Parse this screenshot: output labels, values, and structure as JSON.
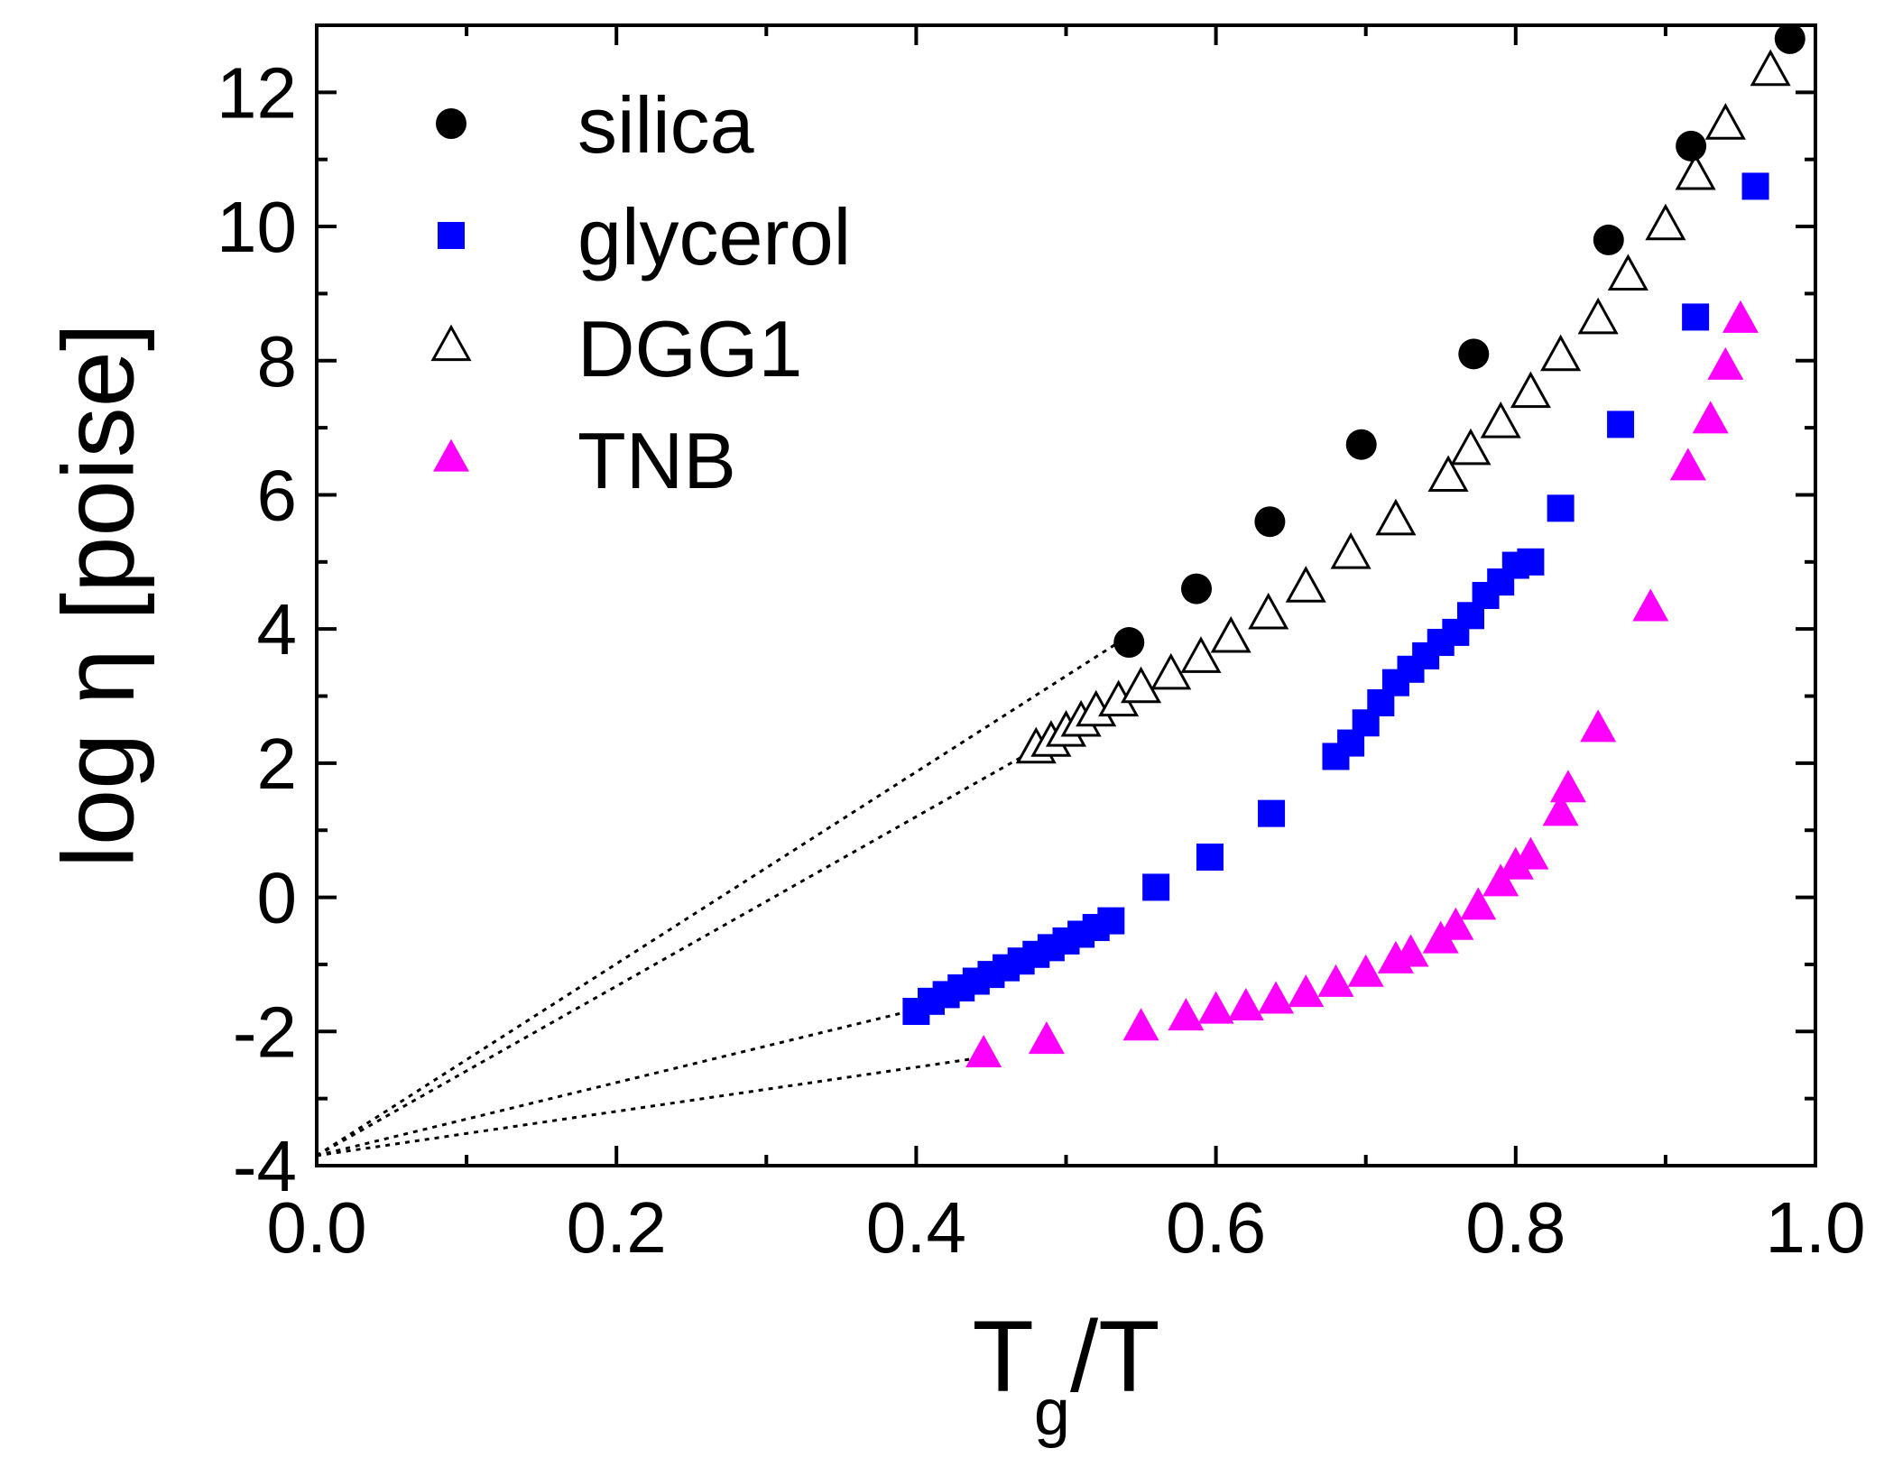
{
  "chart_data": {
    "type": "scatter",
    "title": "",
    "xlabel": {
      "main": "T",
      "subscript": "g",
      "suffix": "/T"
    },
    "ylabel": "log η [poise]",
    "xlim": [
      0.0,
      1.0
    ],
    "ylim": [
      -4,
      13
    ],
    "x_ticks": [
      0.0,
      0.2,
      0.4,
      0.6,
      0.8,
      1.0
    ],
    "x_tick_labels": [
      "0.0",
      "0.2",
      "0.4",
      "0.6",
      "0.8",
      "1.0"
    ],
    "y_ticks": [
      -4,
      -2,
      0,
      2,
      4,
      6,
      8,
      10,
      12
    ],
    "y_tick_labels": [
      "-4",
      "-2",
      "0",
      "2",
      "4",
      "6",
      "8",
      "10",
      "12"
    ],
    "grid": false,
    "legend_position": "top-left",
    "series": [
      {
        "name": "silica",
        "marker": "circle-filled",
        "color": "#000000",
        "x": [
          0.542,
          0.587,
          0.636,
          0.697,
          0.772,
          0.862,
          0.917,
          0.983
        ],
        "y": [
          3.8,
          4.6,
          5.6,
          6.75,
          8.1,
          9.8,
          11.2,
          12.8
        ]
      },
      {
        "name": "glycerol",
        "marker": "square-filled",
        "color": "#0000ff",
        "x": [
          0.4,
          0.41,
          0.42,
          0.43,
          0.44,
          0.45,
          0.46,
          0.47,
          0.48,
          0.49,
          0.5,
          0.51,
          0.52,
          0.53,
          0.56,
          0.596,
          0.637,
          0.68,
          0.69,
          0.7,
          0.71,
          0.72,
          0.73,
          0.74,
          0.75,
          0.76,
          0.77,
          0.78,
          0.79,
          0.8,
          0.81,
          0.83,
          0.87,
          0.92,
          0.96
        ],
        "y": [
          -1.7,
          -1.55,
          -1.45,
          -1.35,
          -1.25,
          -1.15,
          -1.05,
          -0.95,
          -0.85,
          -0.75,
          -0.65,
          -0.55,
          -0.45,
          -0.35,
          0.15,
          0.6,
          1.25,
          2.1,
          2.3,
          2.6,
          2.9,
          3.2,
          3.4,
          3.6,
          3.8,
          3.95,
          4.2,
          4.5,
          4.7,
          4.95,
          5.0,
          5.8,
          7.05,
          8.65,
          10.6
        ]
      },
      {
        "name": "DGG1",
        "marker": "triangle-open",
        "color": "#000000",
        "x": [
          0.48,
          0.49,
          0.5,
          0.51,
          0.52,
          0.535,
          0.55,
          0.57,
          0.59,
          0.61,
          0.635,
          0.66,
          0.69,
          0.72,
          0.755,
          0.77,
          0.79,
          0.81,
          0.83,
          0.855,
          0.875,
          0.9,
          0.92,
          0.94,
          0.97
        ],
        "y": [
          2.2,
          2.3,
          2.45,
          2.6,
          2.75,
          2.9,
          3.1,
          3.3,
          3.55,
          3.85,
          4.2,
          4.6,
          5.1,
          5.6,
          6.25,
          6.65,
          7.05,
          7.5,
          8.05,
          8.6,
          9.25,
          10.0,
          10.75,
          11.5,
          12.3
        ]
      },
      {
        "name": "TNB",
        "marker": "triangle-filled",
        "color": "#ff00ff",
        "x": [
          0.445,
          0.487,
          0.55,
          0.58,
          0.6,
          0.62,
          0.64,
          0.66,
          0.68,
          0.7,
          0.72,
          0.73,
          0.75,
          0.76,
          0.775,
          0.79,
          0.8,
          0.81,
          0.83,
          0.835,
          0.855,
          0.89,
          0.915,
          0.93,
          0.94,
          0.95
        ],
        "y": [
          -2.35,
          -2.15,
          -1.95,
          -1.8,
          -1.7,
          -1.65,
          -1.55,
          -1.45,
          -1.3,
          -1.15,
          -0.95,
          -0.85,
          -0.65,
          -0.45,
          -0.15,
          0.2,
          0.45,
          0.6,
          1.25,
          1.6,
          2.5,
          4.3,
          6.4,
          7.1,
          7.9,
          8.6
        ]
      }
    ],
    "annotations": {
      "dotted_extrapolation_lines": [
        {
          "from": [
            0.0,
            -3.85
          ],
          "to": [
            0.535,
            3.8
          ]
        },
        {
          "from": [
            0.0,
            -3.85
          ],
          "to": [
            0.475,
            2.15
          ]
        },
        {
          "from": [
            0.0,
            -3.85
          ],
          "to": [
            0.395,
            -1.7
          ]
        },
        {
          "from": [
            0.0,
            -3.85
          ],
          "to": [
            0.44,
            -2.4
          ]
        }
      ]
    }
  }
}
